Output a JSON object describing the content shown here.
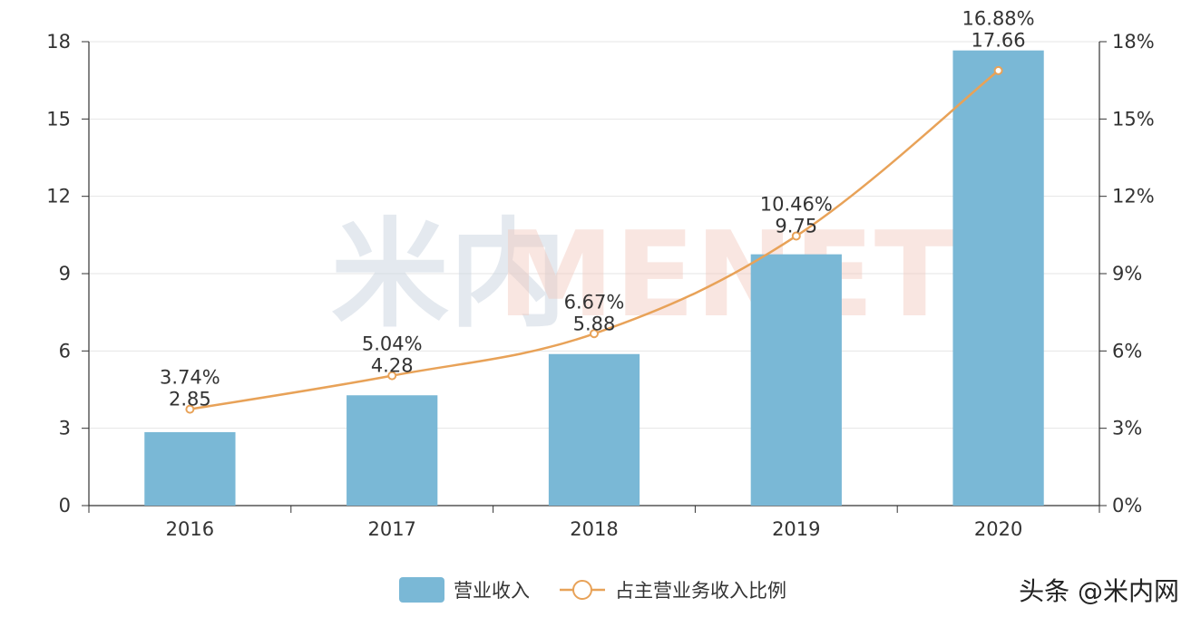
{
  "chart_data": {
    "type": "bar",
    "categories": [
      "2016",
      "2017",
      "2018",
      "2019",
      "2020"
    ],
    "series": [
      {
        "name": "营业收入",
        "type": "bar",
        "axis": "left",
        "values": [
          2.85,
          4.28,
          5.88,
          9.75,
          17.66
        ],
        "labels": [
          "2.85",
          "4.28",
          "5.88",
          "9.75",
          "17.66"
        ],
        "color": "#7ab8d6"
      },
      {
        "name": "占主营业务收入比例",
        "type": "line",
        "axis": "right",
        "values": [
          3.74,
          5.04,
          6.67,
          10.46,
          16.88
        ],
        "labels": [
          "3.74%",
          "5.04%",
          "6.67%",
          "10.46%",
          "16.88%"
        ],
        "color": "#e8a258"
      }
    ],
    "y_left": {
      "lim": [
        0,
        18
      ],
      "ticks": [
        "0",
        "3",
        "6",
        "9",
        "12",
        "15",
        "18"
      ]
    },
    "y_right": {
      "lim": [
        0,
        18
      ],
      "ticks": [
        "0%",
        "3%",
        "6%",
        "9%",
        "12%",
        "15%",
        "18%"
      ]
    },
    "grid": true,
    "legend_position": "bottom-center"
  },
  "watermark": {
    "cn": "米内",
    "en": "MENET"
  },
  "credit": "头条 @米内网"
}
